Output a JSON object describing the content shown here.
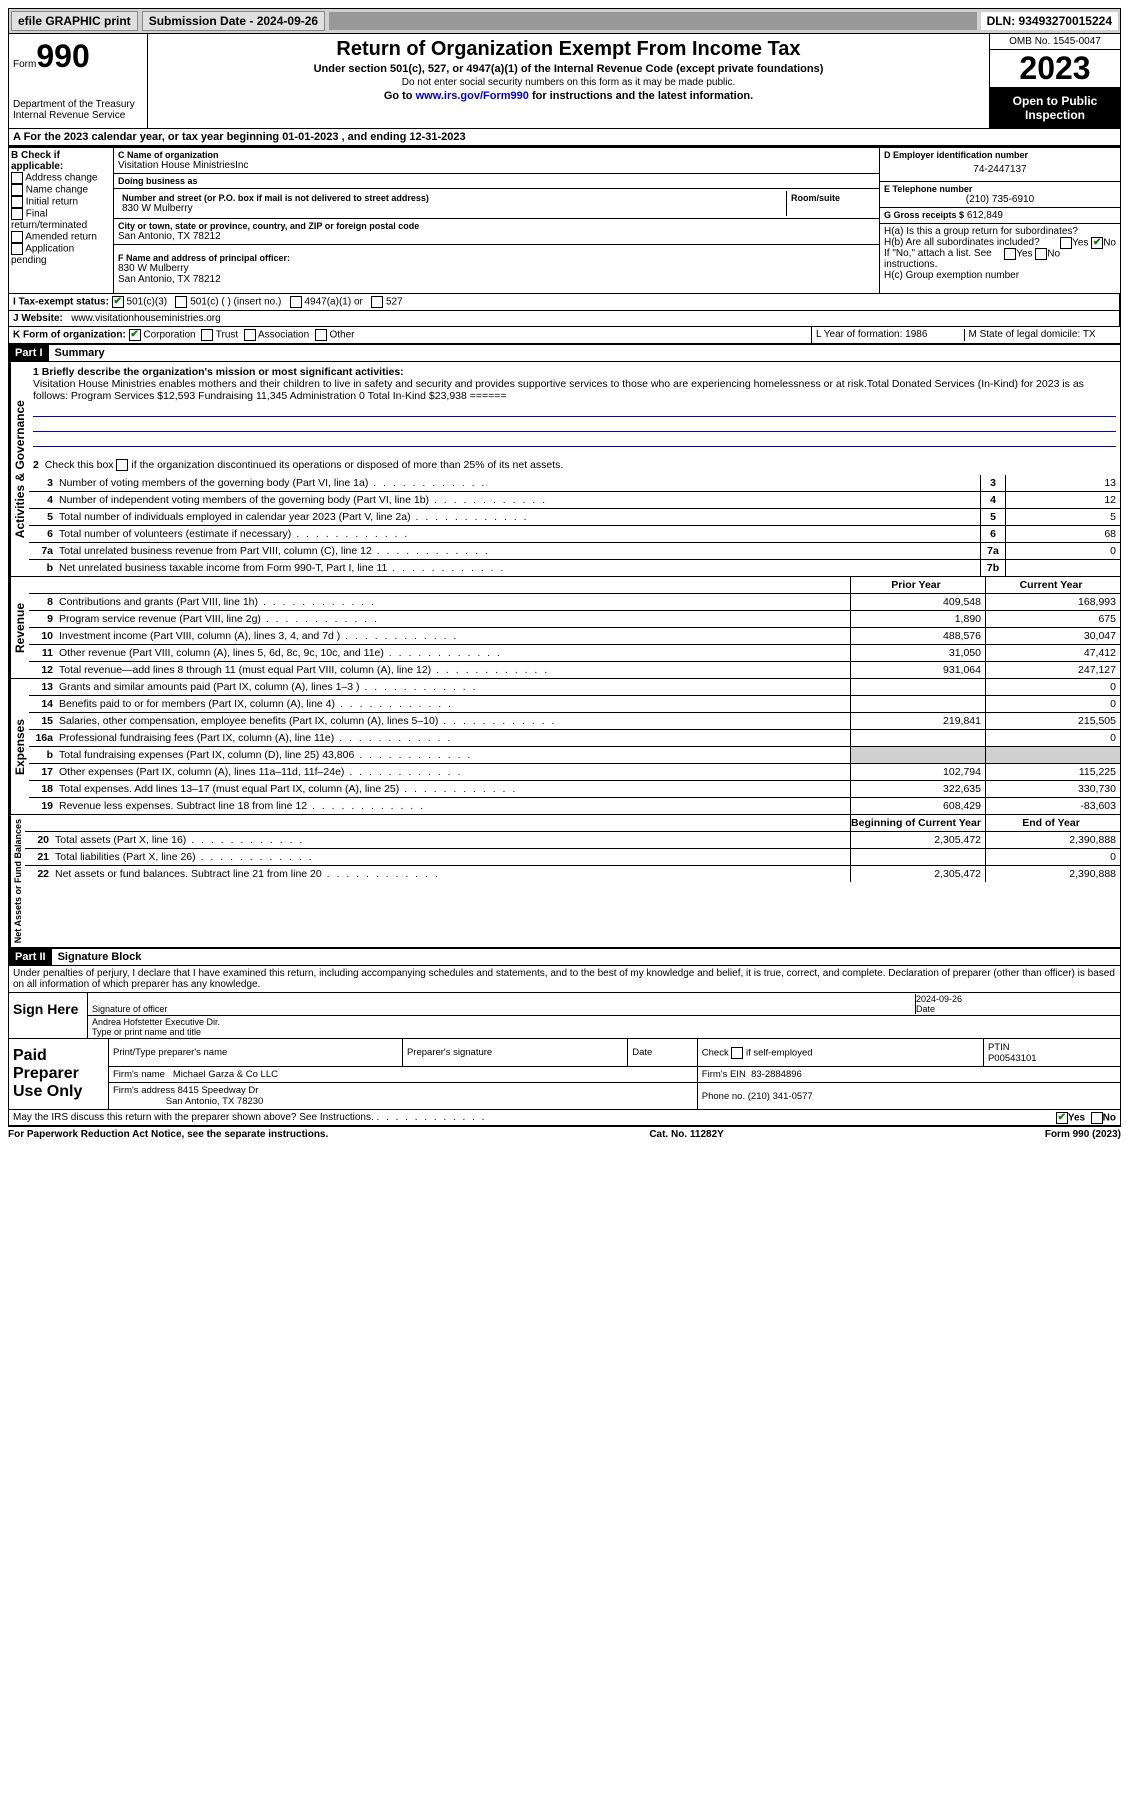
{
  "topbar": {
    "efile": "efile GRAPHIC print",
    "submission": "Submission Date - 2024-09-26",
    "dln": "DLN: 93493270015224"
  },
  "header": {
    "form_label": "Form",
    "form_num": "990",
    "title": "Return of Organization Exempt From Income Tax",
    "sub1": "Under section 501(c), 527, or 4947(a)(1) of the Internal Revenue Code (except private foundations)",
    "sub2": "Do not enter social security numbers on this form as it may be made public.",
    "sub3": "Go to www.irs.gov/Form990 for instructions and the latest information.",
    "link": "www.irs.gov/Form990",
    "dept": "Department of the Treasury Internal Revenue Service",
    "omb": "OMB No. 1545-0047",
    "year": "2023",
    "inspect": "Open to Public Inspection"
  },
  "line_a": "A For the 2023 calendar year, or tax year beginning 01-01-2023   , and ending 12-31-2023",
  "section_b": {
    "label": "B Check if applicable:",
    "items": [
      "Address change",
      "Name change",
      "Initial return",
      "Final return/terminated",
      "Amended return",
      "Application pending"
    ]
  },
  "section_c": {
    "name_label": "C Name of organization",
    "name": "Visitation House MinistriesInc",
    "dba_label": "Doing business as",
    "dba": "",
    "addr_label": "Number and street (or P.O. box if mail is not delivered to street address)",
    "room_label": "Room/suite",
    "addr": "830 W Mulberry",
    "city_label": "City or town, state or province, country, and ZIP or foreign postal code",
    "city": "San Antonio, TX  78212",
    "officer_label": "F Name and address of principal officer:",
    "officer_name": "",
    "officer_addr1": "830 W Mulberry",
    "officer_addr2": "San Antonio, TX  78212"
  },
  "section_d": {
    "ein_label": "D Employer identification number",
    "ein": "74-2447137",
    "phone_label": "E Telephone number",
    "phone": "(210) 735-6910",
    "gross_label": "G Gross receipts $",
    "gross": "612,849",
    "ha": "H(a) Is this a group return for subordinates?",
    "ha_yes": "Yes",
    "ha_no": "No",
    "hb": "H(b) Are all subordinates included?",
    "hb_yes": "Yes",
    "hb_no": "No",
    "hb_note": "If \"No,\" attach a list. See instructions.",
    "hc": "H(c) Group exemption number"
  },
  "row_i": {
    "label": "I    Tax-exempt status:",
    "opt1": "501(c)(3)",
    "opt2": "501(c) (  ) (insert no.)",
    "opt3": "4947(a)(1) or",
    "opt4": "527"
  },
  "row_j": {
    "label": "J    Website:",
    "value": "www.visitationhouseministries.org"
  },
  "row_k": {
    "label": "K Form of organization:",
    "opts": [
      "Corporation",
      "Trust",
      "Association",
      "Other"
    ],
    "l": "L Year of formation: 1986",
    "m": "M State of legal domicile: TX"
  },
  "part1": {
    "header": "Part I",
    "title": "Summary",
    "q1_label": "1   Briefly describe the organization's mission or most significant activities:",
    "q1_text": "Visitation House Ministries enables mothers and their children to live in safety and security and provides supportive services to those who are experiencing homelessness or at risk.Total Donated Services (In-Kind) for 2023 is as follows: Program Services $12,593 Fundraising 11,345 Administration 0          Total In-Kind $23,938 ======",
    "q2": "Check this box     if the organization discontinued its operations or disposed of more than 25% of its net assets.",
    "sidebar1": "Activities & Governance",
    "sidebar2": "Revenue",
    "sidebar3": "Expenses",
    "sidebar4": "Net Assets or Fund Balances",
    "rows_gov": [
      {
        "n": "3",
        "d": "Number of voting members of the governing body (Part VI, line 1a)",
        "b": "3",
        "v": "13"
      },
      {
        "n": "4",
        "d": "Number of independent voting members of the governing body (Part VI, line 1b)",
        "b": "4",
        "v": "12"
      },
      {
        "n": "5",
        "d": "Total number of individuals employed in calendar year 2023 (Part V, line 2a)",
        "b": "5",
        "v": "5"
      },
      {
        "n": "6",
        "d": "Total number of volunteers (estimate if necessary)",
        "b": "6",
        "v": "68"
      },
      {
        "n": "7a",
        "d": "Total unrelated business revenue from Part VIII, column (C), line 12",
        "b": "7a",
        "v": "0"
      },
      {
        "n": "b",
        "d": "Net unrelated business taxable income from Form 990-T, Part I, line 11",
        "b": "7b",
        "v": ""
      }
    ],
    "col_prior": "Prior Year",
    "col_curr": "Current Year",
    "rows_rev": [
      {
        "n": "8",
        "d": "Contributions and grants (Part VIII, line 1h)",
        "p": "409,548",
        "c": "168,993"
      },
      {
        "n": "9",
        "d": "Program service revenue (Part VIII, line 2g)",
        "p": "1,890",
        "c": "675"
      },
      {
        "n": "10",
        "d": "Investment income (Part VIII, column (A), lines 3, 4, and 7d )",
        "p": "488,576",
        "c": "30,047"
      },
      {
        "n": "11",
        "d": "Other revenue (Part VIII, column (A), lines 5, 6d, 8c, 9c, 10c, and 11e)",
        "p": "31,050",
        "c": "47,412"
      },
      {
        "n": "12",
        "d": "Total revenue—add lines 8 through 11 (must equal Part VIII, column (A), line 12)",
        "p": "931,064",
        "c": "247,127"
      }
    ],
    "rows_exp": [
      {
        "n": "13",
        "d": "Grants and similar amounts paid (Part IX, column (A), lines 1–3 )",
        "p": "",
        "c": "0"
      },
      {
        "n": "14",
        "d": "Benefits paid to or for members (Part IX, column (A), line 4)",
        "p": "",
        "c": "0"
      },
      {
        "n": "15",
        "d": "Salaries, other compensation, employee benefits (Part IX, column (A), lines 5–10)",
        "p": "219,841",
        "c": "215,505"
      },
      {
        "n": "16a",
        "d": "Professional fundraising fees (Part IX, column (A), line 11e)",
        "p": "",
        "c": "0"
      },
      {
        "n": "b",
        "d": "Total fundraising expenses (Part IX, column (D), line 25) 43,806",
        "p": "gray",
        "c": "gray"
      },
      {
        "n": "17",
        "d": "Other expenses (Part IX, column (A), lines 11a–11d, 11f–24e)",
        "p": "102,794",
        "c": "115,225"
      },
      {
        "n": "18",
        "d": "Total expenses. Add lines 13–17 (must equal Part IX, column (A), line 25)",
        "p": "322,635",
        "c": "330,730"
      },
      {
        "n": "19",
        "d": "Revenue less expenses. Subtract line 18 from line 12",
        "p": "608,429",
        "c": "-83,603"
      }
    ],
    "col_begin": "Beginning of Current Year",
    "col_end": "End of Year",
    "rows_net": [
      {
        "n": "20",
        "d": "Total assets (Part X, line 16)",
        "p": "2,305,472",
        "c": "2,390,888"
      },
      {
        "n": "21",
        "d": "Total liabilities (Part X, line 26)",
        "p": "",
        "c": "0"
      },
      {
        "n": "22",
        "d": "Net assets or fund balances. Subtract line 21 from line 20",
        "p": "2,305,472",
        "c": "2,390,888"
      }
    ]
  },
  "part2": {
    "header": "Part II",
    "title": "Signature Block",
    "decl": "Under penalties of perjury, I declare that I have examined this return, including accompanying schedules and statements, and to the best of my knowledge and belief, it is true, correct, and complete. Declaration of preparer (other than officer) is based on all information of which preparer has any knowledge."
  },
  "sign": {
    "label": "Sign Here",
    "sig_label": "Signature of officer",
    "date_label": "Date",
    "date": "2024-09-26",
    "name": "Andrea Hofstetter Executive Dir.",
    "name_label": "Type or print name and title"
  },
  "paid": {
    "label": "Paid Preparer Use Only",
    "h1": "Print/Type preparer's name",
    "h2": "Preparer's signature",
    "h3": "Date",
    "h4": "Check      if self-employed",
    "h5": "PTIN",
    "ptin": "P00543101",
    "firm_name_label": "Firm's name",
    "firm_name": "Michael Garza & Co LLC",
    "firm_ein_label": "Firm's EIN",
    "firm_ein": "83-2884896",
    "firm_addr_label": "Firm's address",
    "firm_addr1": "8415 Speedway Dr",
    "firm_addr2": "San Antonio, TX  78230",
    "phone_label": "Phone no.",
    "phone": "(210) 341-0577"
  },
  "discuss": {
    "text": "May the IRS discuss this return with the preparer shown above? See Instructions.",
    "yes": "Yes",
    "no": "No"
  },
  "footer": {
    "left": "For Paperwork Reduction Act Notice, see the separate instructions.",
    "mid": "Cat. No. 11282Y",
    "right": "Form 990 (2023)"
  }
}
